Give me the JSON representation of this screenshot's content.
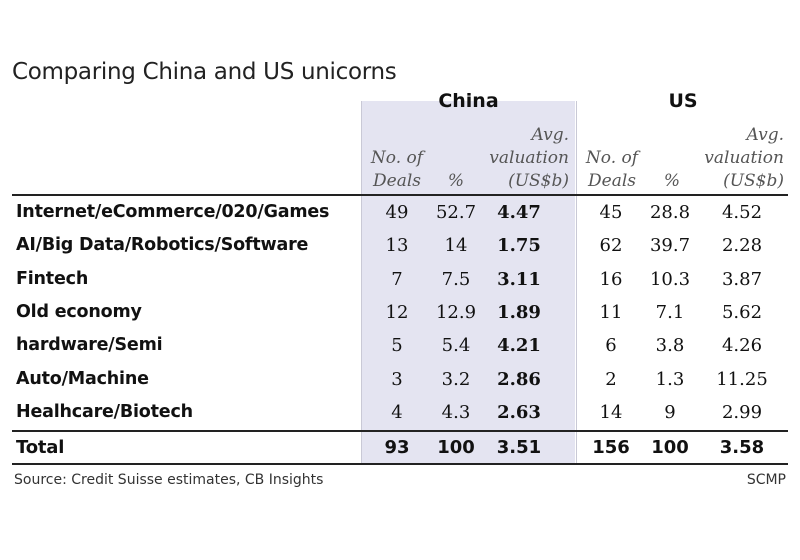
{
  "title": "Comparing China and US unicorns",
  "group_headers": {
    "china": "China",
    "us": "US"
  },
  "column_headers": {
    "deals": [
      "No. of",
      "Deals"
    ],
    "pct": [
      "%"
    ],
    "avg": [
      "Avg.",
      "valuation",
      "(US$b)"
    ]
  },
  "colors": {
    "china_shade": "#e4e4f1",
    "rule": "#222222"
  },
  "chart_data": {
    "type": "table",
    "title": "Comparing China and US unicorns",
    "groups": [
      "China",
      "US"
    ],
    "columns": [
      "No. of Deals",
      "%",
      "Avg. valuation (US$b)"
    ],
    "rows": [
      {
        "label": "Internet/eCommerce/020/Games",
        "china": [
          "49",
          "52.7",
          "4.47"
        ],
        "us": [
          "45",
          "28.8",
          "4.52"
        ]
      },
      {
        "label": "AI/Big Data/Robotics/Software",
        "china": [
          "13",
          "14",
          "1.75"
        ],
        "us": [
          "62",
          "39.7",
          "2.28"
        ]
      },
      {
        "label": "Fintech",
        "china": [
          "7",
          "7.5",
          "3.11"
        ],
        "us": [
          "16",
          "10.3",
          "3.87"
        ]
      },
      {
        "label": "Old economy",
        "china": [
          "12",
          "12.9",
          "1.89"
        ],
        "us": [
          "11",
          "7.1",
          "5.62"
        ]
      },
      {
        "label": "hardware/Semi",
        "china": [
          "5",
          "5.4",
          "4.21"
        ],
        "us": [
          "6",
          "3.8",
          "4.26"
        ]
      },
      {
        "label": "Auto/Machine",
        "china": [
          "3",
          "3.2",
          "2.86"
        ],
        "us": [
          "2",
          "1.3",
          "11.25"
        ]
      },
      {
        "label": "Healhcare/Biotech",
        "china": [
          "4",
          "4.3",
          "2.63"
        ],
        "us": [
          "14",
          "9",
          "2.99"
        ]
      }
    ],
    "total": {
      "label": "Total",
      "china": [
        "93",
        "100",
        "3.51"
      ],
      "us": [
        "156",
        "100",
        "3.58"
      ]
    }
  },
  "footer": {
    "source": "Source: Credit Suisse estimates, CB Insights",
    "credit": "SCMP"
  }
}
